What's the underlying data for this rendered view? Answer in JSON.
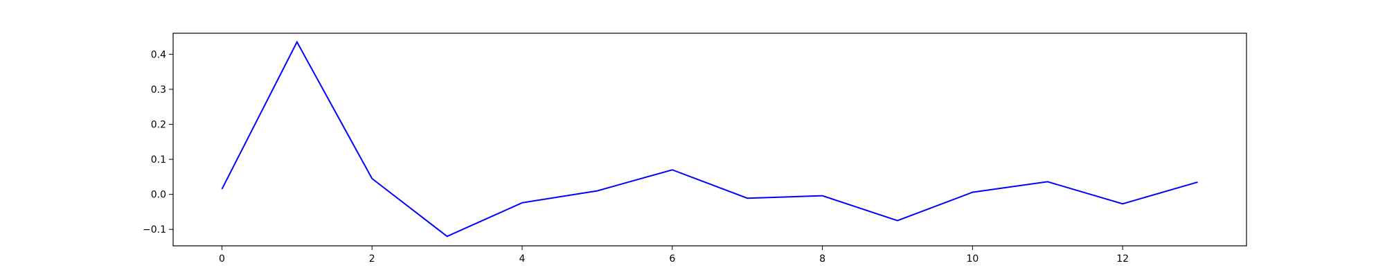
{
  "chart_data": {
    "type": "line",
    "title": "",
    "xlabel": "",
    "ylabel": "",
    "xlim": [
      -0.65,
      13.65
    ],
    "ylim": [
      -0.147,
      0.46
    ],
    "grid": false,
    "x_ticks": [
      0,
      2,
      4,
      6,
      8,
      10,
      12
    ],
    "y_ticks": [
      -0.1,
      0.0,
      0.1,
      0.2,
      0.3,
      0.4
    ],
    "x_tick_labels": [
      "0",
      "2",
      "4",
      "6",
      "8",
      "10",
      "12"
    ],
    "y_tick_labels": [
      "−0.1",
      "0.0",
      "0.1",
      "0.2",
      "0.3",
      "0.4"
    ],
    "series": [
      {
        "color": "#0000ff",
        "x": [
          0,
          1,
          2,
          3,
          4,
          5,
          6,
          7,
          8,
          9,
          10,
          11,
          12,
          13
        ],
        "values": [
          0.015,
          0.435,
          0.045,
          -0.12,
          -0.024,
          0.01,
          0.07,
          -0.011,
          -0.004,
          -0.075,
          0.006,
          0.036,
          -0.027,
          0.035
        ]
      }
    ]
  }
}
